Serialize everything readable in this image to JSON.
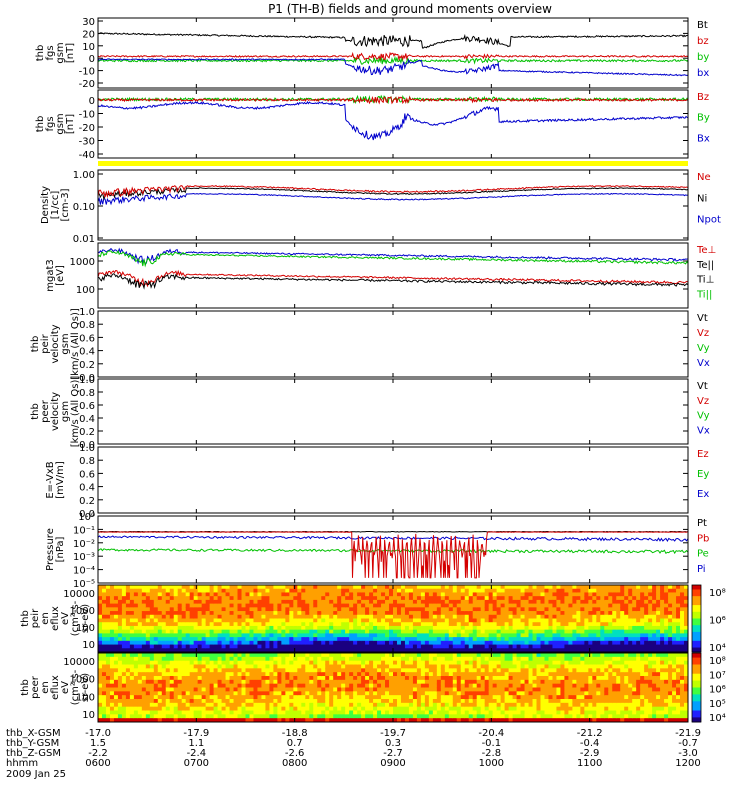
{
  "title": "P1 (TH-B) fields and ground moments overview",
  "panels": [
    {
      "id": "fgs_gsm",
      "ylabel": [
        "thb",
        "fgs",
        "gsm",
        "[nT]"
      ],
      "yticks": [
        "30",
        "20",
        "10",
        "0",
        "-10",
        "-20"
      ],
      "legend": [
        {
          "label": "Bt",
          "color": "#000000"
        },
        {
          "label": "bz",
          "color": "#d40000"
        },
        {
          "label": "by",
          "color": "#00c000"
        },
        {
          "label": "bx",
          "color": "#0000cc"
        }
      ]
    },
    {
      "id": "fgs_gse",
      "ylabel": [
        "thb",
        "fgs",
        "gsm",
        "[nT]"
      ],
      "yticks": [
        "0",
        "-10",
        "-20",
        "-30",
        "-40"
      ],
      "legend": [
        {
          "label": "Bz",
          "color": "#d40000"
        },
        {
          "label": "By",
          "color": "#00c000"
        },
        {
          "label": "Bx",
          "color": "#0000cc"
        }
      ]
    },
    {
      "id": "density",
      "ylabel": [
        "Density",
        "[1/cc]",
        "[cm-3]"
      ],
      "yticks": [
        "1.00",
        "0.10",
        "0.01"
      ],
      "legend": [
        {
          "label": "Ne",
          "color": "#d40000"
        },
        {
          "label": "Ni",
          "color": "#000000"
        },
        {
          "label": "Npot",
          "color": "#0000cc"
        }
      ]
    },
    {
      "id": "temperature",
      "ylabel": [
        "mgat3",
        "[eV]"
      ],
      "yticks": [
        "1000",
        "100"
      ],
      "legend": [
        {
          "label": "Te⊥",
          "color": "#d40000"
        },
        {
          "label": "Te||",
          "color": "#000000"
        },
        {
          "label": "Ti⊥",
          "color": "#000000"
        },
        {
          "label": "Ti||",
          "color": "#00c000"
        }
      ]
    },
    {
      "id": "peir_velocity",
      "ylabel": [
        "thb",
        "peir",
        "velocity",
        "gsm",
        "[km/s (All Qs)]"
      ],
      "yticks": [
        "1.0",
        "0.8",
        "0.6",
        "0.4",
        "0.2",
        "0.0"
      ],
      "legend": [
        {
          "label": "Vt",
          "color": "#000000"
        },
        {
          "label": "Vz",
          "color": "#d40000"
        },
        {
          "label": "Vy",
          "color": "#00c000"
        },
        {
          "label": "Vx",
          "color": "#0000cc"
        }
      ]
    },
    {
      "id": "peer_velocity",
      "ylabel": [
        "thb",
        "peer",
        "velocity",
        "gsm",
        "[km/s (All Qs)]"
      ],
      "yticks": [
        "1.0",
        "0.8",
        "0.6",
        "0.4",
        "0.2",
        "0.0"
      ],
      "legend": [
        {
          "label": "Vt",
          "color": "#000000"
        },
        {
          "label": "Vz",
          "color": "#d40000"
        },
        {
          "label": "Vy",
          "color": "#00c000"
        },
        {
          "label": "Vx",
          "color": "#0000cc"
        }
      ]
    },
    {
      "id": "efield",
      "ylabel": [
        "E=-VxB",
        "[mV/m]"
      ],
      "yticks": [
        "1.0",
        "0.8",
        "0.6",
        "0.4",
        "0.2",
        "0.0"
      ],
      "legend": [
        {
          "label": "Ez",
          "color": "#d40000"
        },
        {
          "label": "Ey",
          "color": "#00c000"
        },
        {
          "label": "Ex",
          "color": "#0000cc"
        }
      ]
    },
    {
      "id": "pressure",
      "ylabel": [
        "Pressure",
        "[nPa]"
      ],
      "yticks": [
        "10⁰",
        "10⁻¹",
        "10⁻²",
        "10⁻³",
        "10⁻⁴",
        "10⁻⁵"
      ],
      "legend": [
        {
          "label": "Pt",
          "color": "#000000"
        },
        {
          "label": "Pb",
          "color": "#d40000"
        },
        {
          "label": "Pe",
          "color": "#00c000"
        },
        {
          "label": "Pi",
          "color": "#0000cc"
        }
      ]
    },
    {
      "id": "peir_eflux",
      "ylabel": [
        "thb",
        "peir",
        "en",
        "eflux",
        "eV",
        "(cm²-s-",
        "sr-eV)"
      ],
      "yticks": [
        "10000",
        "1000",
        "100",
        "10"
      ],
      "colorbar": [
        "10⁸",
        "10⁶",
        "10⁴"
      ]
    },
    {
      "id": "peer_eflux",
      "ylabel": [
        "thb",
        "peer",
        "en",
        "eflux",
        "eV",
        "(cm²-s-",
        "sr-eV)"
      ],
      "yticks": [
        "10000",
        "1000",
        "100",
        "10"
      ],
      "colorbar": [
        "10⁸",
        "10⁷",
        "10⁶",
        "10⁵",
        "10⁴"
      ]
    }
  ],
  "footer": {
    "rows": [
      {
        "label": "thb_X-GSM",
        "values": [
          "-17.0",
          "-17.9",
          "-18.8",
          "-19.7",
          "-20.4",
          "-21.2",
          "-21.9"
        ]
      },
      {
        "label": "thb_Y-GSM",
        "values": [
          "1.5",
          "1.1",
          "0.7",
          "0.3",
          "-0.1",
          "-0.4",
          "-0.7"
        ]
      },
      {
        "label": "thb_Z-GSM",
        "values": [
          "-2.2",
          "-2.4",
          "-2.6",
          "-2.7",
          "-2.8",
          "-2.9",
          "-3.0"
        ]
      },
      {
        "label": "hhmm",
        "values": [
          "0600",
          "0700",
          "0800",
          "0900",
          "1000",
          "1100",
          "1200"
        ]
      }
    ],
    "date": "2009 Jan 25"
  },
  "chart_data": {
    "type": "line",
    "title": "P1 (TH-B) fields and ground moments overview",
    "x": [
      "0600",
      "0700",
      "0800",
      "0900",
      "1000",
      "1100",
      "1200"
    ],
    "series": [
      {
        "name": "Bt",
        "panel": "fgs_gsm",
        "values": [
          21,
          17,
          18,
          12,
          8,
          15,
          17
        ]
      },
      {
        "name": "bz",
        "panel": "fgs_gsm",
        "values": [
          2,
          1,
          1,
          1,
          1,
          1,
          1
        ]
      },
      {
        "name": "by",
        "panel": "fgs_gsm",
        "values": [
          -2,
          -2,
          -2,
          -3,
          -3,
          -3,
          -3
        ]
      },
      {
        "name": "bx",
        "panel": "fgs_gsm",
        "values": [
          -1,
          -1,
          -1,
          -12,
          -8,
          -18,
          -20
        ]
      },
      {
        "name": "Bz",
        "panel": "fgs_gse",
        "values": [
          0,
          0,
          0,
          -1,
          -1,
          0,
          0
        ]
      },
      {
        "name": "By",
        "panel": "fgs_gse",
        "values": [
          0,
          1,
          1,
          0,
          0,
          0,
          0
        ]
      },
      {
        "name": "Bx",
        "panel": "fgs_gse",
        "values": [
          -3,
          -6,
          -5,
          -25,
          -10,
          -15,
          -8
        ]
      },
      {
        "name": "Ne",
        "panel": "density",
        "values": [
          0.25,
          0.35,
          0.4,
          0.45,
          0.5,
          0.45,
          0.35
        ]
      },
      {
        "name": "Ni",
        "panel": "density",
        "values": [
          0.22,
          0.3,
          0.35,
          0.4,
          0.45,
          0.4,
          0.3
        ]
      },
      {
        "name": "Npot",
        "panel": "density",
        "values": [
          0.15,
          0.2,
          0.25,
          0.3,
          0.35,
          0.3,
          0.25
        ]
      },
      {
        "name": "Ti||",
        "panel": "temperature",
        "values": [
          1800,
          1500,
          1300,
          1200,
          1100,
          900,
          800
        ]
      },
      {
        "name": "Ti⊥",
        "panel": "temperature",
        "values": [
          2200,
          1900,
          1600,
          1500,
          1400,
          1200,
          1000
        ]
      },
      {
        "name": "Te⊥",
        "panel": "temperature",
        "values": [
          350,
          300,
          300,
          260,
          230,
          200,
          170
        ]
      },
      {
        "name": "Te||",
        "panel": "temperature",
        "values": [
          250,
          240,
          240,
          220,
          200,
          170,
          140
        ]
      },
      {
        "name": "Pt",
        "panel": "pressure",
        "values": [
          0.08,
          0.08,
          0.08,
          0.08,
          0.08,
          0.08,
          0.08
        ]
      },
      {
        "name": "Pb",
        "panel": "pressure",
        "values": [
          0.08,
          0.08,
          0.08,
          0.0003,
          0.08,
          0.08,
          0.08
        ]
      },
      {
        "name": "Pe",
        "panel": "pressure",
        "values": [
          0.003,
          0.003,
          0.003,
          0.003,
          0.003,
          0.002,
          0.002
        ]
      },
      {
        "name": "Pi",
        "panel": "pressure",
        "values": [
          0.03,
          0.03,
          0.03,
          0.03,
          0.03,
          0.02,
          0.015
        ]
      }
    ]
  }
}
